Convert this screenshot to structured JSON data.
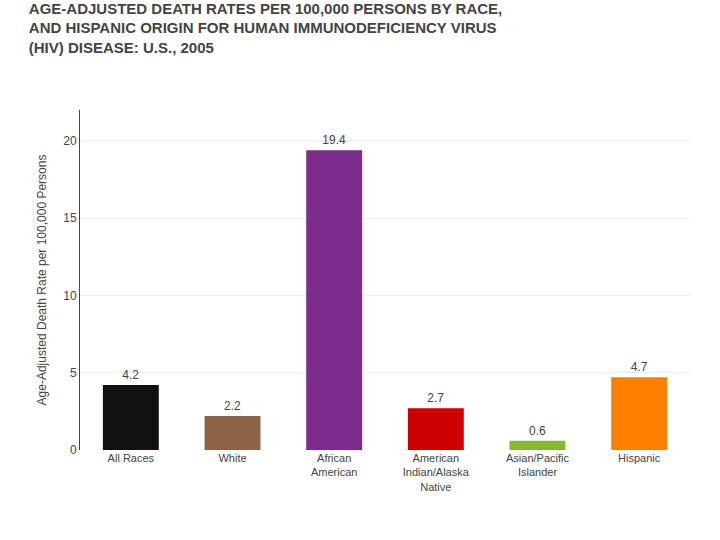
{
  "chart_data": {
    "type": "bar",
    "title": "AGE-ADJUSTED DEATH RATES PER 100,000 PERSONS BY RACE,\nAND HISPANIC ORIGIN FOR HUMAN IMMUNODEFICIENCY VIRUS\n(HIV) DISEASE: U.S., 2005",
    "ylabel": "Age-Adjusted Death Rate per 100,000 Persons",
    "categories": [
      "All Races",
      "White",
      "African\nAmerican",
      "American\nIndian/Alaska\nNative",
      "Asian/Pacific\nIslander",
      "Hispanic"
    ],
    "values": [
      4.2,
      2.2,
      19.4,
      2.7,
      0.6,
      4.7
    ],
    "colors": [
      "#111111",
      "#8B6347",
      "#7B2D8B",
      "#CC0000",
      "#88B830",
      "#FF7F00"
    ],
    "ylim": [
      0,
      22
    ],
    "yticks": [
      0,
      5,
      10,
      15,
      20
    ],
    "grid": true,
    "data_labels": true
  }
}
